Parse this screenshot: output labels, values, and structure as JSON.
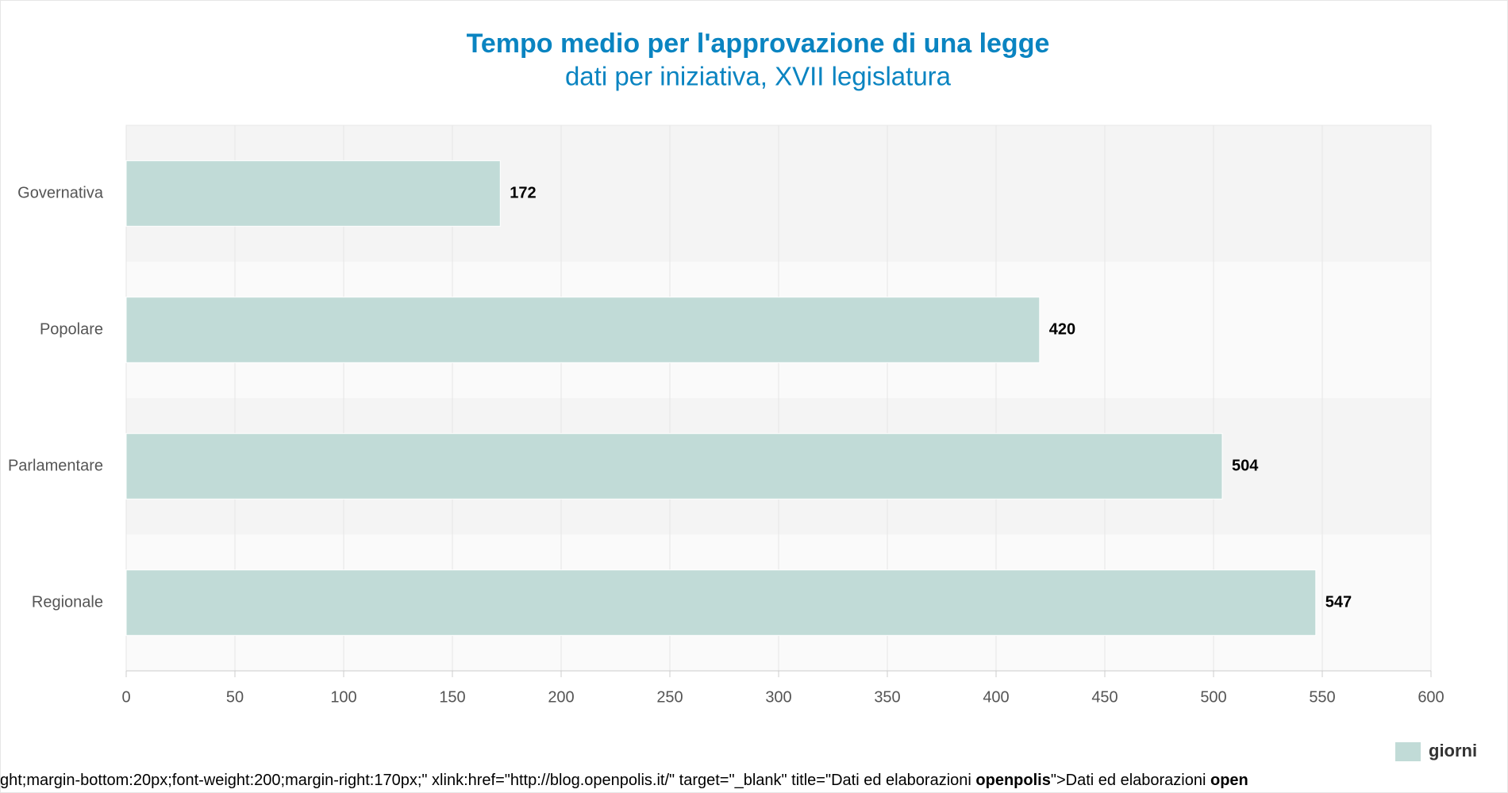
{
  "chart_data": {
    "type": "hbar",
    "title": "Tempo medio per l'approvazione di una legge",
    "subtitle": "dati per iniziativa, XVII legislatura",
    "categories": [
      "Governativa",
      "Popolare",
      "Parlamentare",
      "Regionale"
    ],
    "series": [
      {
        "name": "giorni",
        "color": "#c1dbd7",
        "values": [
          172,
          420,
          504,
          547
        ]
      }
    ],
    "xlim": [
      0,
      600
    ],
    "xticks": [
      0,
      50,
      100,
      150,
      200,
      250,
      300,
      350,
      400,
      450,
      500,
      550,
      600
    ],
    "grid": true,
    "legend": "bottom-right",
    "footer": [
      "ght;margin-bottom:20px;font-weight:200;margin-right:170px;\" xlink:href=\"http://blog.openpolis.it/\" target=\"_blank\" title=\"Dati ed elaborazioni ",
      "openpolis",
      "\">Dati ed elaborazioni ",
      "open"
    ]
  }
}
